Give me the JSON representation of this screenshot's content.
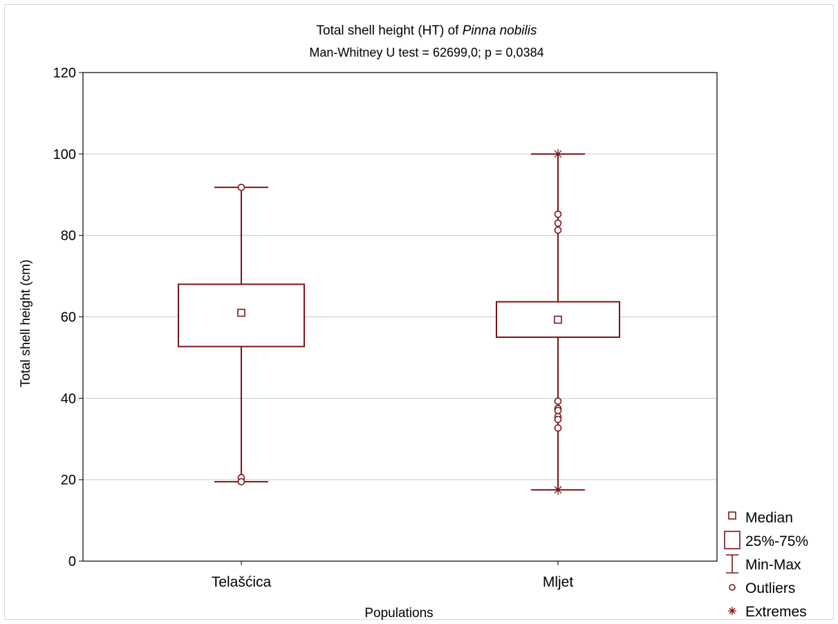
{
  "chart_data": {
    "type": "box",
    "title": "Total shell height (HT) of ",
    "title_italic": "Pinna nobilis",
    "subtitle": "Man-Whitney U test = 62699,0; p = 0,0384",
    "xlabel": "Populations",
    "ylabel": "Total shell height (cm)",
    "ylim": [
      0,
      120
    ],
    "yticks": [
      "0",
      "20",
      "40",
      "60",
      "80",
      "100",
      "120"
    ],
    "grid": true,
    "legend_position": "bottom-right-outside",
    "color": "#7b1416",
    "categories": [
      "Telašćica",
      "Mljet"
    ],
    "boxes": [
      {
        "name": "Telašćica",
        "median": 61,
        "q1": 52.7,
        "q3": 68,
        "min": 19.5,
        "max": 91.8,
        "outliers": [
          91.8,
          20.5,
          19.5
        ],
        "extremes": []
      },
      {
        "name": "Mljet",
        "median": 59.3,
        "q1": 55,
        "q3": 63.7,
        "min": 17.5,
        "max": 100,
        "outliers": [
          85.2,
          83,
          81.3,
          39.3,
          37.5,
          37,
          35.5,
          34.8,
          32.7
        ],
        "extremes": [
          100,
          17.5
        ]
      }
    ],
    "legend": {
      "median": "Median",
      "box": "25%-75%",
      "whisker": "Min-Max",
      "outliers": "Outliers",
      "extremes": "Extremes"
    }
  }
}
